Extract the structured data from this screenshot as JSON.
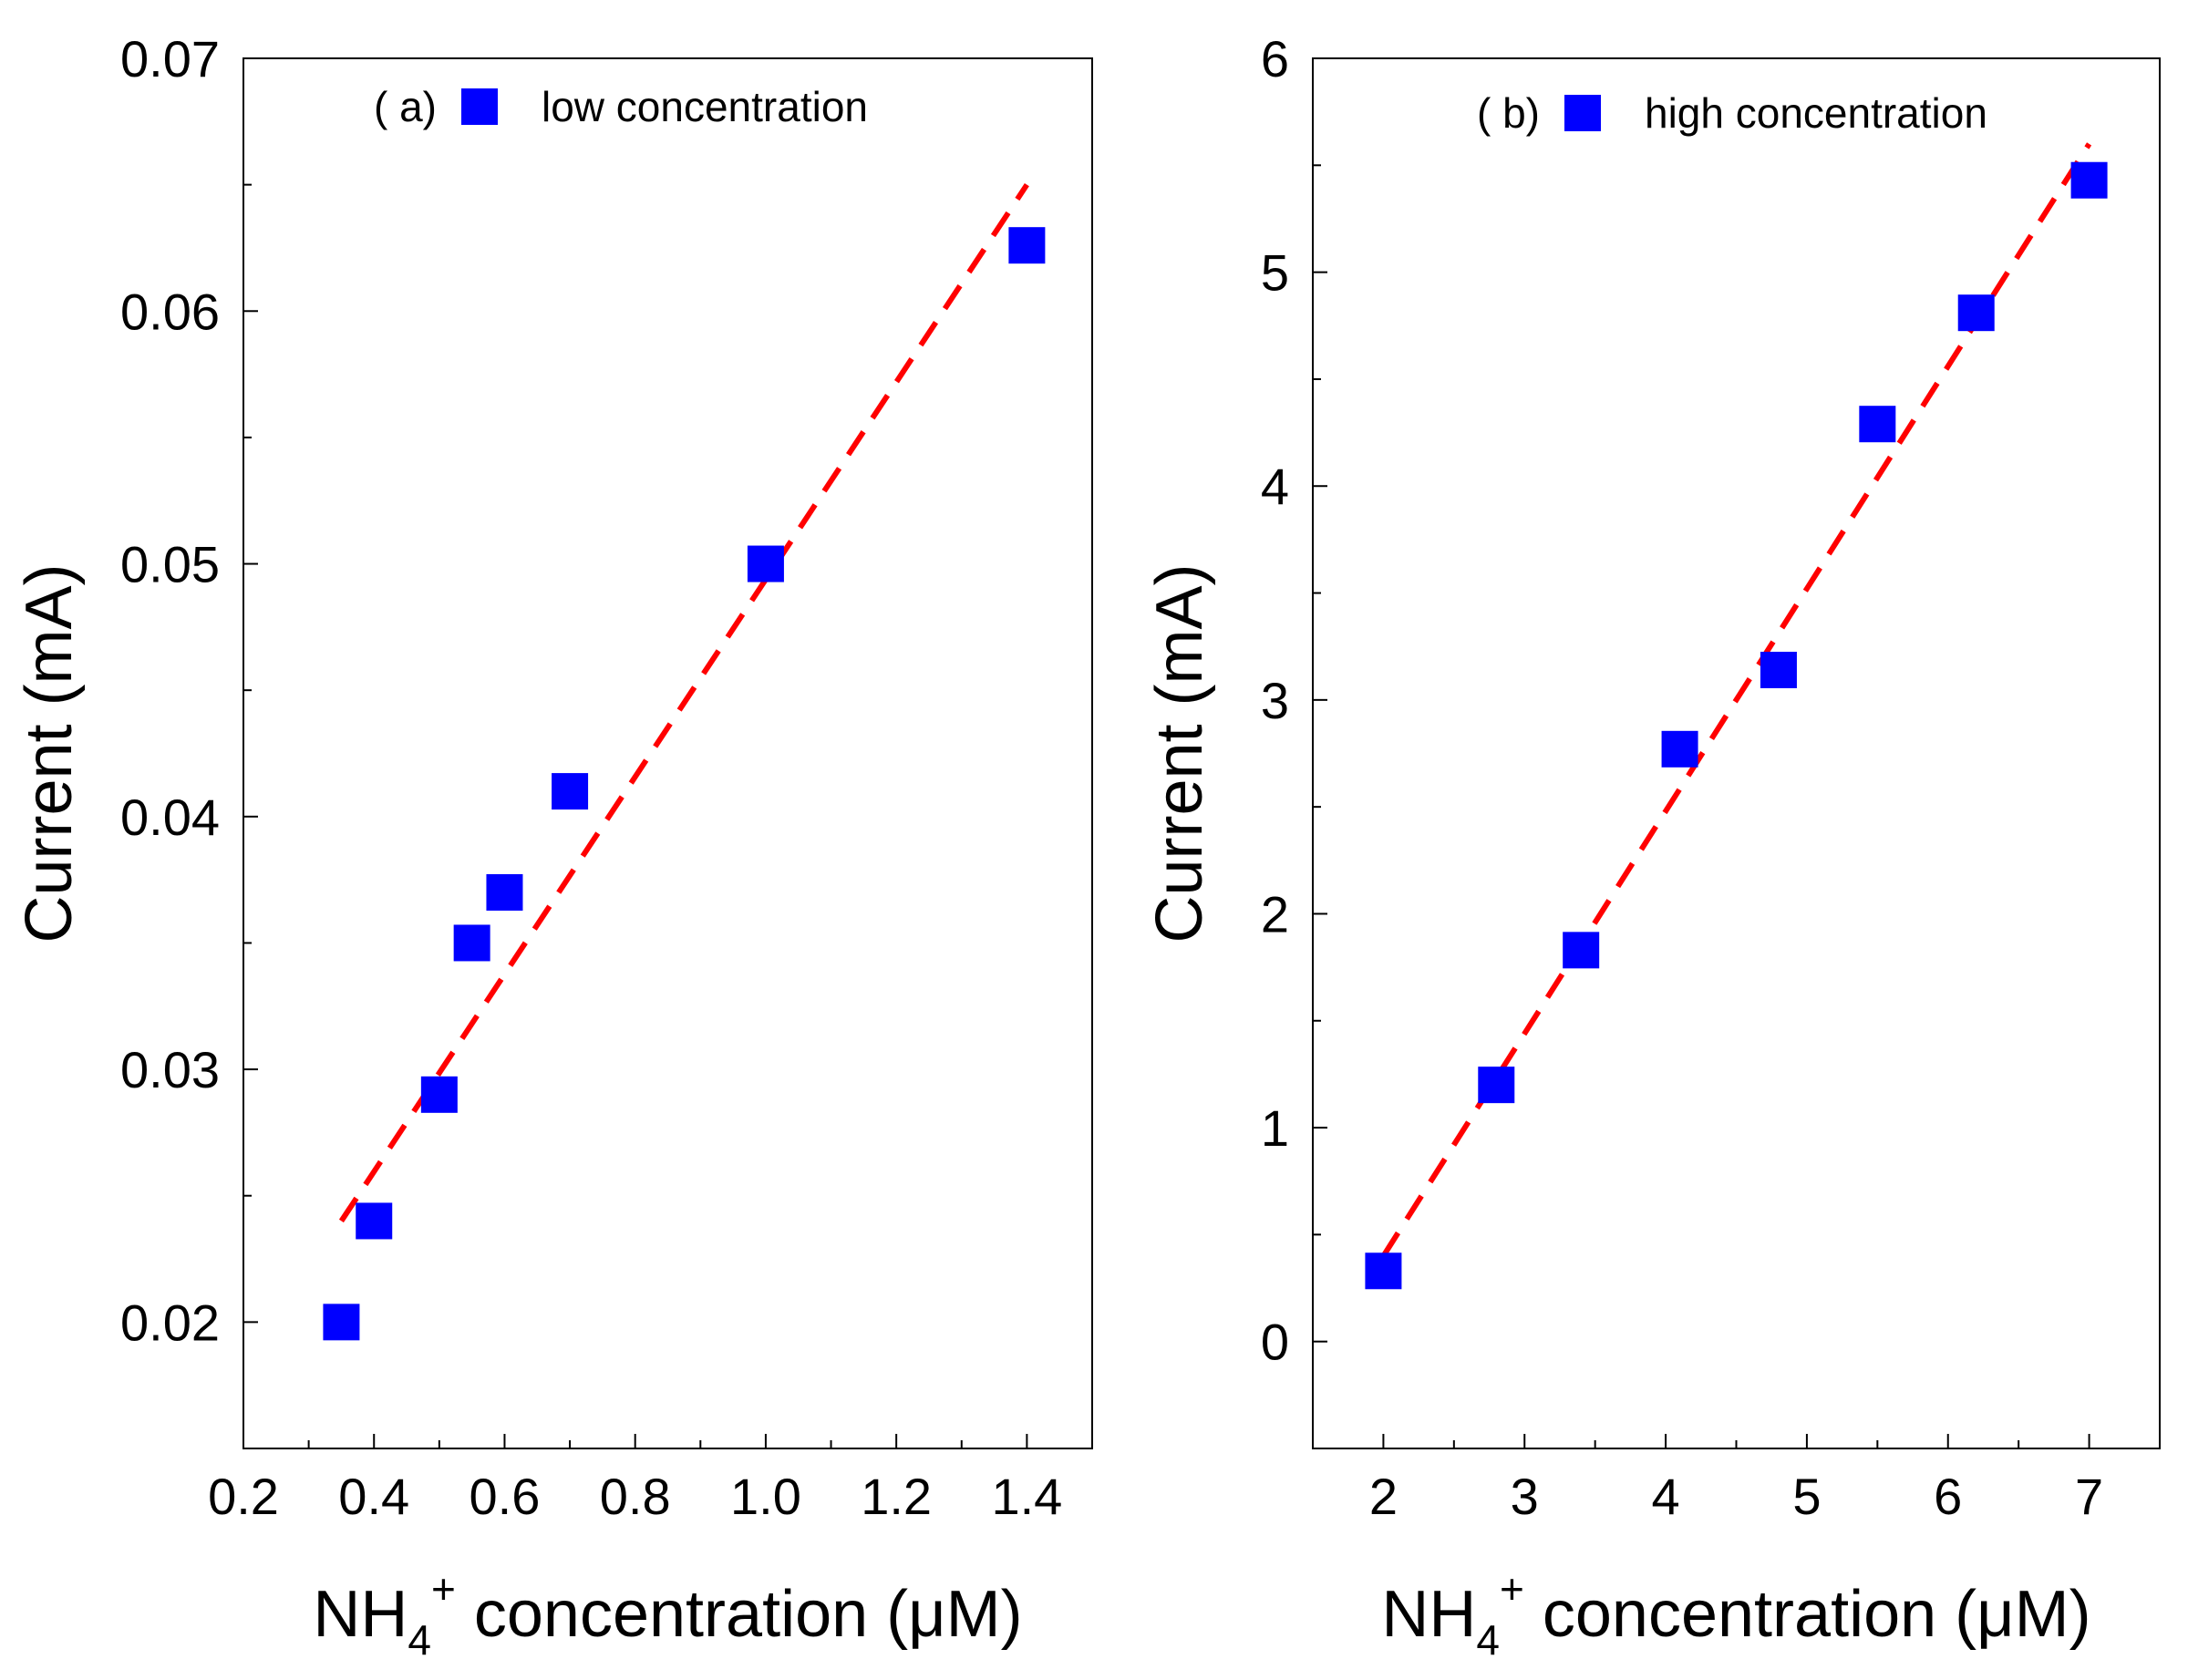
{
  "chart_data": [
    {
      "type": "scatter",
      "panel_label": "( a)",
      "legend": {
        "label": "low concentration",
        "marker": "square",
        "color": "#0000ff",
        "placement": "top-left"
      },
      "xlabel": {
        "main": "NH",
        "sub": "4",
        "sup": "+",
        "rest": " concentration (μM)"
      },
      "ylabel": "Current (mA)",
      "xlim": [
        0.2,
        1.5
      ],
      "ylim": [
        0.015,
        0.07
      ],
      "xticks": [
        0.2,
        0.4,
        0.6,
        0.8,
        1.0,
        1.2,
        1.4
      ],
      "xtick_labels": [
        "0.2",
        "0.4",
        "0.6",
        "0.8",
        "1.0",
        "1.2",
        "1.4"
      ],
      "xminor": [
        0.3,
        0.5,
        0.7,
        0.9,
        1.1,
        1.3
      ],
      "yticks": [
        0.02,
        0.03,
        0.04,
        0.05,
        0.06,
        0.07
      ],
      "ytick_labels": [
        "0.02",
        "0.03",
        "0.04",
        "0.05",
        "0.06",
        "0.07"
      ],
      "yminor": [
        0.025,
        0.035,
        0.045,
        0.055,
        0.065
      ],
      "series": [
        {
          "name": "low concentration",
          "x": [
            0.35,
            0.4,
            0.5,
            0.55,
            0.6,
            0.7,
            1.0,
            1.4
          ],
          "y": [
            0.02,
            0.024,
            0.029,
            0.035,
            0.037,
            0.041,
            0.05,
            0.0626
          ]
        }
      ],
      "fit_line": {
        "x": [
          0.35,
          1.4
        ],
        "y": [
          0.024,
          0.065
        ],
        "color": "#ff0000",
        "style": "dashed"
      }
    },
    {
      "type": "scatter",
      "panel_label": "( b)",
      "legend": {
        "label": "high concentration",
        "marker": "square",
        "color": "#0000ff",
        "placement": "top-left"
      },
      "xlabel": {
        "main": "NH",
        "sub": "4",
        "sup": "+",
        "rest": " concentration (μM)"
      },
      "ylabel": "Current (mA)",
      "xlim": [
        1.5,
        7.5
      ],
      "ylim": [
        -0.5,
        6
      ],
      "xticks": [
        2,
        3,
        4,
        5,
        6,
        7
      ],
      "xtick_labels": [
        "2",
        "3",
        "4",
        "5",
        "6",
        "7"
      ],
      "xminor": [
        2.5,
        3.5,
        4.5,
        5.5,
        6.5
      ],
      "yticks": [
        0,
        1,
        2,
        3,
        4,
        5,
        6
      ],
      "ytick_labels": [
        "0",
        "1",
        "2",
        "3",
        "4",
        "5",
        "6"
      ],
      "yminor": [
        0.5,
        1.5,
        2.5,
        3.5,
        4.5,
        5.5
      ],
      "series": [
        {
          "name": "high concentration",
          "x": [
            2.0,
            2.8,
            3.4,
            4.1,
            4.8,
            5.5,
            6.2,
            7.0
          ],
          "y": [
            0.33,
            1.2,
            1.83,
            2.77,
            3.14,
            4.29,
            4.81,
            5.43
          ]
        }
      ],
      "fit_line": {
        "x": [
          2.0,
          7.0
        ],
        "y": [
          0.4,
          5.6
        ],
        "color": "#ff0000",
        "style": "dashed"
      }
    }
  ]
}
